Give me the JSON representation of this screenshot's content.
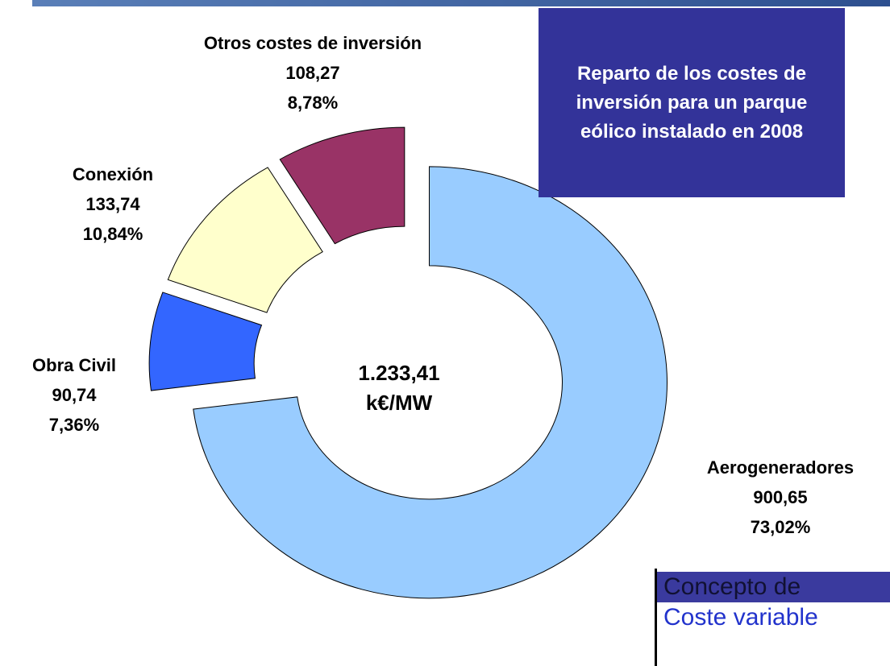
{
  "chart_data": {
    "type": "donut",
    "title": "Reparto de los costes de inversión para un parque eólico instalado en 2008",
    "center_label": "1.233,41",
    "center_unit": "k€/MW",
    "categories": [
      "Aerogeneradores",
      "Obra Civil",
      "Conexión",
      "Otros costes de inversión"
    ],
    "values": [
      900.65,
      90.74,
      133.74,
      108.27
    ],
    "value_labels": [
      "900,65",
      "90,74",
      "133,74",
      "108,27"
    ],
    "percent_labels": [
      "73,02%",
      "7,36%",
      "10,84%",
      "8,78%"
    ],
    "colors": [
      "#99ccff",
      "#3366ff",
      "#ffffcc",
      "#993366"
    ]
  },
  "table": {
    "header": "Concepto de",
    "row": "Coste variable"
  }
}
